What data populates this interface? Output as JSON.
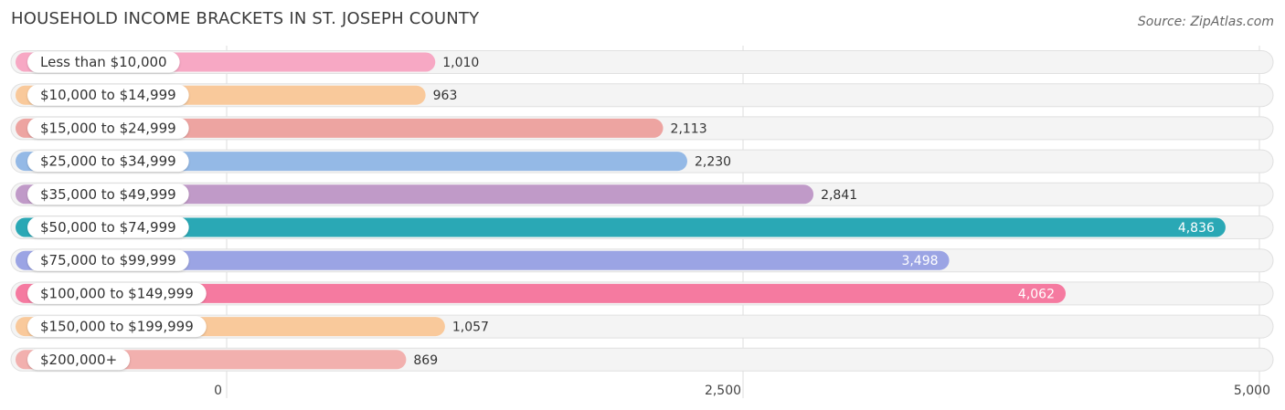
{
  "title": "HOUSEHOLD INCOME BRACKETS IN ST. JOSEPH COUNTY",
  "source": "Source: ZipAtlas.com",
  "chart_data": {
    "type": "bar",
    "orientation": "horizontal",
    "title": "HOUSEHOLD INCOME BRACKETS IN ST. JOSEPH COUNTY",
    "categories": [
      "Less than $10,000",
      "$10,000 to $14,999",
      "$15,000 to $24,999",
      "$25,000 to $34,999",
      "$35,000 to $49,999",
      "$50,000 to $74,999",
      "$75,000 to $99,999",
      "$100,000 to $149,999",
      "$150,000 to $199,999",
      "$200,000+"
    ],
    "values": [
      1010,
      963,
      2113,
      2230,
      2841,
      4836,
      3498,
      4062,
      1057,
      869
    ],
    "value_labels": [
      "1,010",
      "963",
      "2,113",
      "2,230",
      "2,841",
      "4,836",
      "3,498",
      "4,062",
      "1,057",
      "869"
    ],
    "colors": [
      "#f7a8c4",
      "#f9c99b",
      "#eda4a1",
      "#94b9e6",
      "#c09ac8",
      "#2aa8b5",
      "#9ba4e4",
      "#f57aa0",
      "#f9c99b",
      "#f2b0ae"
    ],
    "xlim": [
      0,
      5000
    ],
    "ticks": [
      0,
      2500,
      5000
    ],
    "tick_labels": [
      "0",
      "2,500",
      "5,000"
    ],
    "grid": true,
    "legend": "none"
  }
}
